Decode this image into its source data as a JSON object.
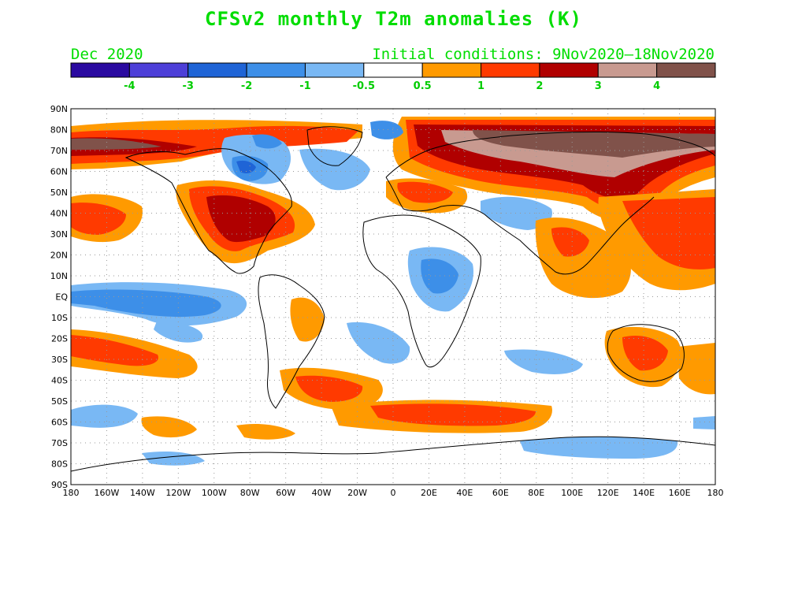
{
  "title": "CFSv2 monthly T2m anomalies (K)",
  "valid_month": "Dec 2020",
  "initial_conditions": "Initial conditions: 9Nov2020–18Nov2020",
  "colorbar": {
    "colors": [
      "#2a0aa0",
      "#4d3fd8",
      "#1f64d6",
      "#3d8fe8",
      "#79b8f4",
      "#ffffff",
      "#ff9a00",
      "#ff3a00",
      "#b00000",
      "#c89a90",
      "#80524a"
    ],
    "labels": [
      "-4",
      "-3",
      "-2",
      "-1",
      "-0.5",
      "0.5",
      "1",
      "2",
      "3",
      "4"
    ]
  },
  "lat_labels": [
    "90N",
    "80N",
    "70N",
    "60N",
    "50N",
    "40N",
    "30N",
    "20N",
    "10N",
    "EQ",
    "10S",
    "20S",
    "30S",
    "40S",
    "50S",
    "60S",
    "70S",
    "80S",
    "90S"
  ],
  "lon_labels": [
    "180",
    "160W",
    "140W",
    "120W",
    "100W",
    "80W",
    "60W",
    "40W",
    "20W",
    "0",
    "20E",
    "40E",
    "60E",
    "80E",
    "100E",
    "120E",
    "140E",
    "160E",
    "180"
  ]
}
